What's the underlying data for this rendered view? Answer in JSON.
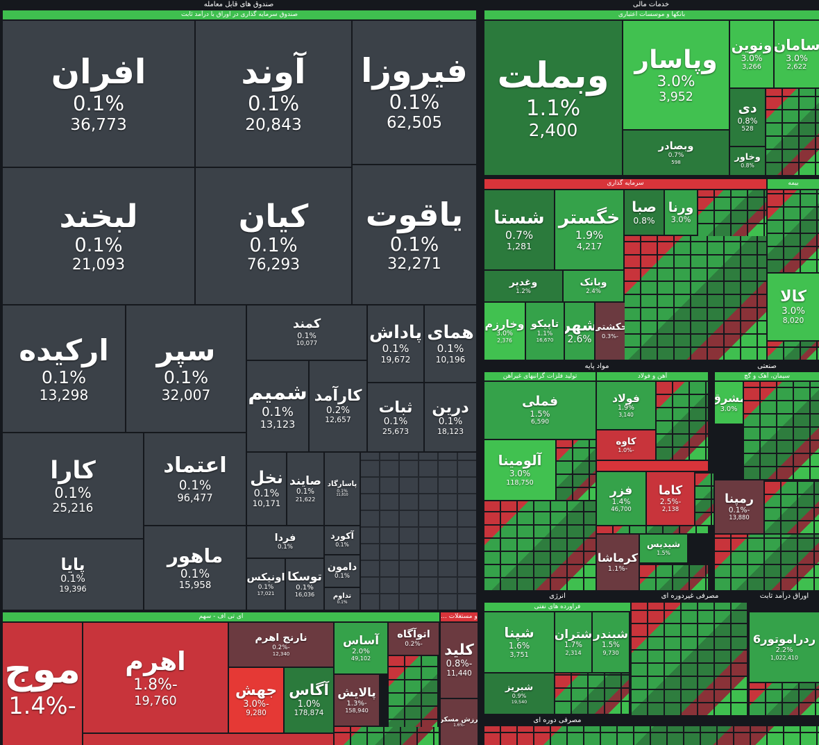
{
  "left_panel": {
    "title": "صندوق های قابل معامله",
    "subtitle": "صندوق سرمایه گذاری در اوراق با درآمد ثابت",
    "tiles": [
      {
        "name": "افران",
        "change": "0.1%",
        "value": "36,773"
      },
      {
        "name": "آوند",
        "change": "0.1%",
        "value": "20,843"
      },
      {
        "name": "فیروزا",
        "change": "0.1%",
        "value": "62,505"
      },
      {
        "name": "لبخند",
        "change": "0.1%",
        "value": "21,093"
      },
      {
        "name": "کیان",
        "change": "0.1%",
        "value": "76,293"
      },
      {
        "name": "یاقوت",
        "change": "0.1%",
        "value": "32,271"
      },
      {
        "name": "ارکیده",
        "change": "0.1%",
        "value": "13,298"
      },
      {
        "name": "سپر",
        "change": "0.1%",
        "value": "32,007"
      },
      {
        "name": "کمند",
        "change": "0.1%",
        "value": "10,077"
      },
      {
        "name": "پاداش",
        "change": "0.1%",
        "value": "19,672"
      },
      {
        "name": "همای",
        "change": "0.1%",
        "value": "10,196"
      },
      {
        "name": "شمیم",
        "change": "0.1%",
        "value": "13,123"
      },
      {
        "name": "کارآمد",
        "change": "0.2%",
        "value": "12,657"
      },
      {
        "name": "ثبات",
        "change": "0.1%",
        "value": "25,673"
      },
      {
        "name": "درین",
        "change": "0.1%",
        "value": "18,123"
      },
      {
        "name": "کارا",
        "change": "0.1%",
        "value": "25,216"
      },
      {
        "name": "اعتماد",
        "change": "0.1%",
        "value": "96,477"
      },
      {
        "name": "پایا",
        "change": "0.1%",
        "value": "19,396"
      },
      {
        "name": "ماهور",
        "change": "0.1%",
        "value": "15,958"
      },
      {
        "name": "نخل",
        "change": "0.1%",
        "value": "10,171"
      },
      {
        "name": "صایند",
        "change": "0.1%",
        "value": "21,622"
      },
      {
        "name": "پاسارگاد",
        "change": "0.1%",
        "value": "11,810"
      },
      {
        "name": "فردا",
        "change": "0.1%"
      },
      {
        "name": "آکورد",
        "change": "0.1%"
      },
      {
        "name": "اونیکس",
        "change": "0.1%",
        "value": "17,021"
      },
      {
        "name": "توسکا",
        "change": "0.1%",
        "value": "16,036"
      },
      {
        "name": "دامون",
        "change": "0.1%"
      },
      {
        "name": "تداوم",
        "change": "0.1%"
      }
    ]
  },
  "etf_panel": {
    "title": "ای تی اف - سهم",
    "side_title": "... و مستغلات",
    "tiles": [
      {
        "name": "موج",
        "change": "-1.4%"
      },
      {
        "name": "اهرم",
        "change": "-1.8%",
        "value": "19,760"
      },
      {
        "name": "نارنج اهرم",
        "change": "-0.2%",
        "value": "12,340"
      },
      {
        "name": "جهش",
        "change": "-3.0%",
        "value": "9,280"
      },
      {
        "name": "آگاس",
        "change": "1.0%",
        "value": "178,874"
      },
      {
        "name": "آساس",
        "change": "2.0%",
        "value": "49,102"
      },
      {
        "name": "اتوآگاه",
        "change": "-0.2%"
      },
      {
        "name": "پالایش",
        "change": "-1.3%",
        "value": "158,940"
      },
      {
        "name": "کلید",
        "change": "-0.8%",
        "value": "11,440"
      },
      {
        "name": "ارزش مسکن",
        "change": "-1.6%"
      }
    ]
  },
  "right_panel": {
    "title": "خدمات مالی",
    "subtitle": "بانکها و موسسات اعتباری",
    "tiles": [
      {
        "name": "وبملت",
        "change": "1.1%",
        "value": "2,400"
      },
      {
        "name": "وپاسار",
        "change": "3.0%",
        "value": "3,952"
      },
      {
        "name": "وبصادر",
        "change": "0.7%",
        "value": "598"
      },
      {
        "name": "ونوین",
        "change": "3.0%",
        "value": "3,266"
      },
      {
        "name": "سامان",
        "change": "3.0%",
        "value": "2,622"
      },
      {
        "name": "دی",
        "change": "0.8%",
        "value": "528"
      },
      {
        "name": "وخاور",
        "change": "0.8%"
      }
    ]
  },
  "investment": {
    "title": "سرمایه گذاری",
    "side_title": "بیمه",
    "tiles": [
      {
        "name": "شستا",
        "change": "0.7%",
        "value": "1,281"
      },
      {
        "name": "خگستر",
        "change": "1.9%",
        "value": "4,217"
      },
      {
        "name": "صبا",
        "change": "0.8%"
      },
      {
        "name": "ورنا",
        "change": "3.0%"
      },
      {
        "name": "وغدیر",
        "change": "1.2%"
      },
      {
        "name": "وبانک",
        "change": "2.4%"
      },
      {
        "name": "وخارزم",
        "change": "3.0%",
        "value": "2,376"
      },
      {
        "name": "تاپیکو",
        "change": "1.1%",
        "value": "16,670"
      },
      {
        "name": "شهر",
        "change": "2.6%"
      },
      {
        "name": "حکشتی",
        "change": "-0.3%"
      },
      {
        "name": "کالا",
        "change": "3.0%",
        "value": "8,020"
      }
    ]
  },
  "basic": {
    "title": "مواد پایه",
    "side_title": "صنعتی",
    "groups": [
      "تولید فلزات گرانبهای غیرآهن",
      "آهن و فولاد",
      "سیمان، آهک و گچ"
    ],
    "tiles": [
      {
        "name": "فملی",
        "change": "1.5%",
        "value": "6,590"
      },
      {
        "name": "آلومینا",
        "change": "3.0%",
        "value": "118,750"
      },
      {
        "name": "فولاد",
        "change": "1.9%",
        "value": "3,140"
      },
      {
        "name": "کاوه",
        "change": "-1.0%"
      },
      {
        "name": "فزر",
        "change": "1.4%",
        "value": "46,700"
      },
      {
        "name": "کاما",
        "change": "-2.5%",
        "value": "2,138"
      },
      {
        "name": "رمپنا",
        "change": "-0.1%",
        "value": "13,880"
      },
      {
        "name": "کرماشا",
        "change": "-1.1%"
      },
      {
        "name": "شیدیس",
        "change": "1.5%"
      },
      {
        "name": "مشرق",
        "change": "3.0%"
      }
    ]
  },
  "bottom": {
    "titles": [
      "انرژی",
      "مصرفی غیردوره ای",
      "اوراق درآمد ثابت",
      "مصرفی دوره ای"
    ],
    "groups": [
      "فراورده های نفتی"
    ],
    "tiles": [
      {
        "name": "شپنا",
        "change": "1.6%",
        "value": "3,751"
      },
      {
        "name": "شتران",
        "change": "1.7%",
        "value": "2,314"
      },
      {
        "name": "شبندر",
        "change": "1.5%",
        "value": "9,730"
      },
      {
        "name": "شبریز",
        "change": "0.9%",
        "value": "19,540"
      },
      {
        "name": "ردراموتور6",
        "change": "2.2%",
        "value": "1,022,410"
      }
    ]
  }
}
